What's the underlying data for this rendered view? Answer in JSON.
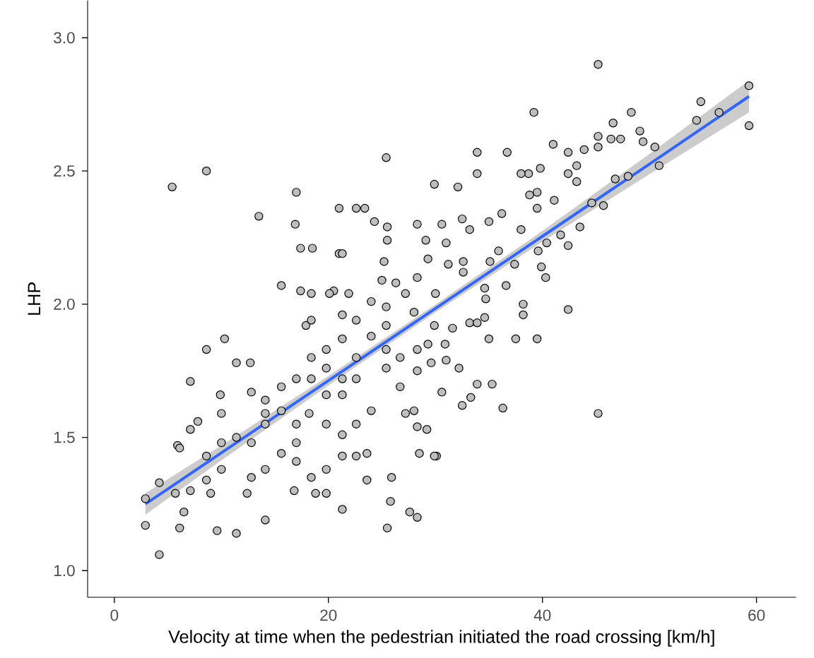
{
  "chart_data": {
    "type": "scatter",
    "xlabel": "Velocity at time when the pedestrian initiated the road crossing [km/h]",
    "ylabel": "LHP",
    "xlim": [
      -2.5,
      63.7
    ],
    "ylim": [
      0.9,
      3.14
    ],
    "xticks": [
      0,
      20,
      40,
      60
    ],
    "yticks": [
      {
        "value": 1.0,
        "label": "1.0"
      },
      {
        "value": 1.5,
        "label": "1.5"
      },
      {
        "value": 2.0,
        "label": "2.0"
      },
      {
        "value": 2.5,
        "label": "2.5"
      },
      {
        "value": 3.0,
        "label": "3.0"
      }
    ],
    "series": [
      {
        "color": "#bebebe",
        "marker": "circle",
        "x": [
          5.4,
          8.6,
          13.5,
          17.0,
          25.4,
          16.9,
          21.0,
          23.4,
          18.5,
          17.4,
          21.0,
          15.6,
          17.4,
          20.5,
          25.0,
          8.6,
          10.3,
          11.4,
          12.7,
          7.1,
          9.9,
          7.8,
          7.1,
          5.9,
          2.9,
          2.9,
          4.2,
          6.1,
          9.6,
          11.4,
          14.1,
          25.5,
          27.6,
          28.3,
          21.3,
          25.8,
          19.8,
          18.8,
          16.8,
          12.4,
          9.0,
          6.5,
          22.6,
          24.3,
          25.5,
          25.5,
          28.3,
          21.3,
          25.2,
          29.1,
          45.2,
          39.2,
          48.3,
          54.8,
          59.3,
          59.3,
          54.4,
          56.5,
          49.1,
          49.4,
          46.6,
          46.4,
          47.3,
          45.2,
          45.2,
          50.5,
          50.9,
          48.0,
          46.8,
          45.7,
          44.6,
          45.2,
          42.4,
          43.9,
          42.4,
          41.0,
          43.2,
          42.4,
          39.8,
          38.7,
          38.0,
          36.7,
          33.9,
          33.9,
          32.1,
          29.9,
          39.5,
          38.8,
          41.1,
          43.2,
          43.5,
          42.4,
          39.5,
          36.2,
          35.0,
          32.5,
          30.6,
          38.0,
          40.4,
          41.7,
          39.6,
          39.9,
          40.3,
          38.2,
          38.2,
          37.5,
          39.5,
          35.0,
          35.3,
          33.9,
          36.3,
          33.3,
          32.5,
          32.2,
          31.0,
          30.1,
          29.2,
          30.6,
          33.2,
          33.9,
          34.6,
          34.7,
          36.6,
          37.4,
          32.6,
          31.2,
          35.1,
          35.9,
          33.2,
          31.0,
          29.3,
          30.0,
          31.6,
          29.9,
          29.3,
          30.9,
          29.6,
          34.6,
          32.6,
          14.1,
          15.6,
          17.0,
          18.2,
          17.0,
          15.6,
          14.1,
          17.0,
          18.4,
          19.8,
          21.3,
          22.6,
          23.6,
          22.6,
          24.0,
          21.3,
          19.8,
          19.8,
          21.3,
          21.3,
          22.6,
          22.6,
          21.3,
          19.8,
          18.4,
          19.8,
          18.4,
          17.0,
          15.6,
          14.1,
          12.8,
          14.1,
          12.8,
          11.4,
          10.0,
          10.0,
          8.6,
          10.0,
          8.6,
          7.1,
          5.7,
          4.2,
          6.1,
          12.8,
          17.9,
          18.4,
          22.6,
          24.0,
          25.4,
          25.4,
          26.7,
          25.4,
          26.7,
          28.0,
          27.2,
          28.3,
          28.5,
          29.9,
          25.9,
          23.6,
          24.0,
          25.4,
          27.2,
          28.0,
          26.3,
          28.3,
          28.3,
          28.3,
          21.9,
          20.1,
          18.4,
          21.3
        ],
        "values": [
          2.44,
          2.5,
          2.33,
          2.42,
          2.55,
          2.3,
          2.36,
          2.36,
          2.21,
          2.21,
          2.19,
          2.07,
          2.05,
          2.05,
          2.09,
          1.83,
          1.87,
          1.78,
          1.78,
          1.71,
          1.66,
          1.56,
          1.53,
          1.47,
          1.27,
          1.17,
          1.06,
          1.16,
          1.15,
          1.14,
          1.19,
          1.16,
          1.22,
          1.2,
          1.23,
          1.26,
          1.29,
          1.29,
          1.3,
          1.29,
          1.29,
          1.22,
          2.36,
          2.31,
          2.29,
          2.24,
          2.3,
          2.19,
          2.16,
          2.24,
          2.9,
          2.72,
          2.72,
          2.76,
          2.82,
          2.67,
          2.69,
          2.72,
          2.65,
          2.61,
          2.68,
          2.62,
          2.62,
          2.63,
          2.59,
          2.59,
          2.52,
          2.48,
          2.47,
          2.37,
          2.38,
          1.59,
          1.98,
          2.58,
          2.57,
          2.6,
          2.52,
          2.49,
          2.51,
          2.49,
          2.49,
          2.57,
          2.57,
          2.49,
          2.44,
          2.45,
          2.42,
          2.41,
          2.39,
          2.46,
          2.29,
          2.22,
          2.36,
          2.34,
          2.31,
          2.32,
          2.3,
          2.28,
          2.23,
          2.26,
          2.2,
          2.14,
          2.1,
          2.0,
          1.96,
          1.87,
          1.87,
          1.87,
          1.7,
          1.7,
          1.61,
          1.65,
          1.62,
          1.76,
          1.79,
          1.43,
          1.53,
          1.67,
          1.93,
          1.93,
          1.95,
          2.02,
          2.07,
          2.15,
          2.16,
          2.15,
          2.16,
          2.2,
          2.28,
          2.23,
          2.17,
          2.04,
          1.91,
          1.92,
          1.85,
          1.85,
          1.78,
          2.06,
          2.12,
          1.59,
          1.6,
          1.55,
          1.59,
          1.48,
          1.44,
          1.38,
          1.41,
          1.35,
          1.38,
          1.43,
          1.43,
          1.34,
          1.55,
          1.6,
          1.51,
          1.55,
          1.66,
          1.66,
          1.72,
          1.72,
          1.8,
          1.87,
          1.83,
          1.8,
          1.76,
          1.72,
          1.72,
          1.69,
          1.64,
          1.67,
          1.55,
          1.48,
          1.5,
          1.59,
          1.48,
          1.43,
          1.38,
          1.34,
          1.3,
          1.29,
          1.33,
          1.46,
          1.35,
          1.92,
          1.94,
          1.94,
          1.88,
          1.92,
          1.83,
          1.8,
          1.76,
          1.69,
          1.6,
          1.59,
          1.54,
          1.44,
          1.43,
          1.35,
          1.44,
          2.01,
          1.99,
          2.04,
          1.97,
          2.08,
          2.1,
          1.83,
          1.75,
          2.04,
          2.04,
          2.04,
          1.96
        ]
      },
      {
        "type": "line",
        "color": "#3366ff",
        "marker": "none",
        "line_style": "solid",
        "x": [
          2.9,
          10,
          20,
          30,
          40,
          50,
          59.3
        ],
        "values": [
          1.25,
          1.442,
          1.713,
          1.984,
          2.255,
          2.526,
          2.78
        ],
        "lower": [
          1.21,
          1.414,
          1.695,
          1.969,
          2.235,
          2.488,
          2.72
        ],
        "upper": [
          1.29,
          1.47,
          1.731,
          1.999,
          2.275,
          2.564,
          2.84
        ]
      }
    ]
  }
}
